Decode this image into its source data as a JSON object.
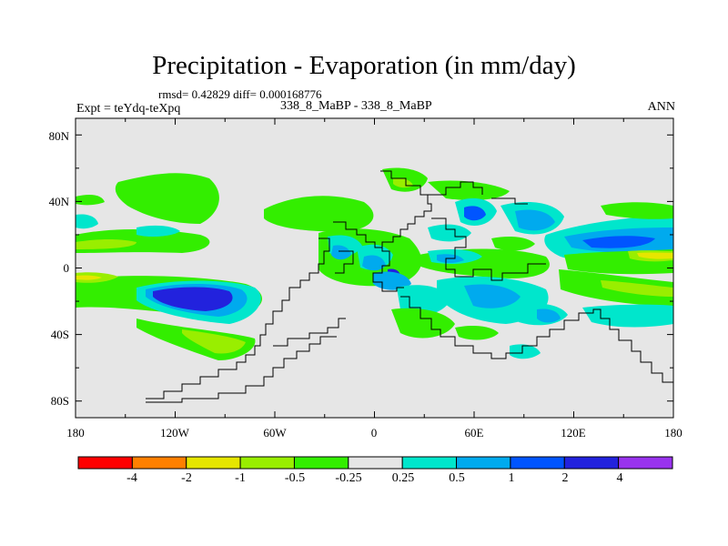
{
  "chart_data": {
    "type": "contour-map",
    "title": "Precipitation - Evaporation (in mm/day)",
    "stats_label": "rmsd= 0.42829 diff= 0.000168776",
    "experiment_label": "Expt = teYdq-teXpq",
    "case_label": "338_8_MaBP - 338_8_MaBP",
    "season": "ANN",
    "lon_range": [
      -180,
      180
    ],
    "lat_range": [
      -90,
      90
    ],
    "y_ticks": [
      "80N",
      "40N",
      "0",
      "40S",
      "80S"
    ],
    "x_ticks": [
      "180",
      "120W",
      "60W",
      "0",
      "60E",
      "120E",
      "180"
    ],
    "colorbar": {
      "labels": [
        "-4",
        "-2",
        "-1",
        "-0.5",
        "-0.25",
        "0.25",
        "0.5",
        "1",
        "2",
        "4"
      ],
      "colors": [
        "#ff0000",
        "#ff8000",
        "#e6e600",
        "#99ee00",
        "#33ee00",
        "#e6e6e6",
        "#00e6cc",
        "#00aaee",
        "#0055ff",
        "#2222dd",
        "#9933ee"
      ]
    },
    "background_color": "#e6e6e6"
  }
}
